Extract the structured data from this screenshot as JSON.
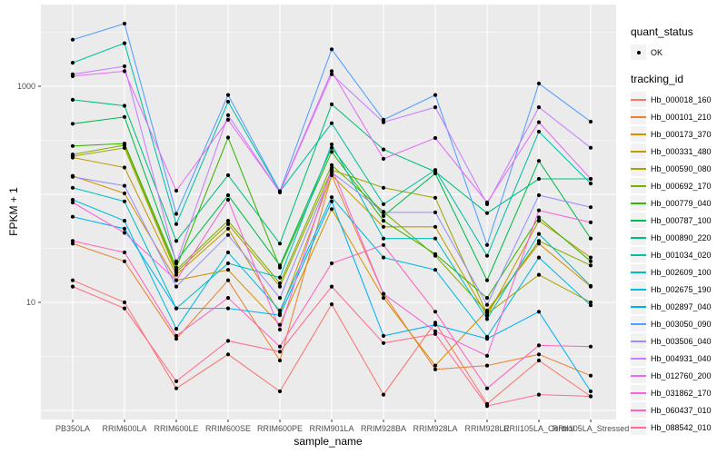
{
  "legend": {
    "quant_status": {
      "title": "quant_status",
      "items": [
        {
          "label": "OK",
          "marker": "point",
          "color": "#000000"
        }
      ]
    },
    "tracking_id": {
      "title": "tracking_id"
    }
  },
  "style": {
    "panel_bg": "#EBEBEB",
    "grid_color": "#FFFFFF",
    "tick_text_color": "#4D4D4D",
    "axis_tick_color": "#333333",
    "point_color": "#000000",
    "legend_key_bg": "#F2F2F2"
  },
  "chart_data": {
    "type": "line",
    "title": "",
    "xlabel": "sample_name",
    "ylabel": "FPKM + 1",
    "y_scale": "log10",
    "y_ticks": [
      10,
      1000
    ],
    "y_tick_labels": [
      "10",
      "1000"
    ],
    "ylim": [
      1.8,
      5700
    ],
    "grid": true,
    "legend_position": "right",
    "point_legend": "quant_status OK = black point on every sample",
    "categories": [
      "PB350LA",
      "RRIM600LA",
      "RRIM600LE",
      "RRIM600SE",
      "RRIM600PE",
      "RRIM901LA",
      "RRIM928BA",
      "RRIM928LA",
      "RRIM928LE",
      "RRII105LA_Control",
      "RRII105LA_Stressed"
    ],
    "series": [
      {
        "name": "Hb_000018_160",
        "color": "#F8766D",
        "values": [
          16,
          10,
          1.6,
          3.3,
          1.5,
          9.6,
          1.4,
          6.5,
          1.15,
          2.9,
          1.35
        ]
      },
      {
        "name": "Hb_000101_210",
        "color": "#EA8335",
        "values": [
          35,
          24,
          4.6,
          16,
          2.9,
          150,
          12,
          2.4,
          2.6,
          3.3,
          2.1
        ]
      },
      {
        "name": "Hb_000173_370",
        "color": "#D89000",
        "values": [
          148,
          102,
          16,
          20,
          6.2,
          73,
          11,
          2.6,
          8.4,
          35,
          14
        ]
      },
      {
        "name": "Hb_000331_480",
        "color": "#C09B06",
        "values": [
          219,
          177,
          18,
          48,
          7.9,
          150,
          50,
          50,
          7.5,
          57,
          26
        ]
      },
      {
        "name": "Hb_000590_080",
        "color": "#A3A500",
        "values": [
          225,
          269,
          19,
          53,
          14,
          168,
          115,
          93,
          7.8,
          18,
          10
        ]
      },
      {
        "name": "Hb_000692_170",
        "color": "#7CAE00",
        "values": [
          234,
          285,
          20,
          57,
          15,
          186,
          69,
          27,
          8.1,
          37,
          22
        ]
      },
      {
        "name": "Hb_000779_040",
        "color": "#39B600",
        "values": [
          280,
          295,
          21,
          335,
          21,
          247,
          57,
          28,
          11,
          61,
          24
        ]
      },
      {
        "name": "Hb_000787_100",
        "color": "#00BB4E",
        "values": [
          450,
          520,
          24,
          98,
          22,
          270,
          63,
          156,
          16,
          204,
          39
        ]
      },
      {
        "name": "Hb_000890_220",
        "color": "#00BF7D",
        "values": [
          750,
          660,
          37,
          150,
          35,
          680,
          260,
          162,
          67,
          139,
          139
        ]
      },
      {
        "name": "Hb_001034_020",
        "color": "#00C1A3",
        "values": [
          1650,
          2500,
          53,
          720,
          106,
          455,
          81,
          168,
          27,
          380,
          126
        ]
      },
      {
        "name": "Hb_002609_100",
        "color": "#00BFC4",
        "values": [
          115,
          86,
          8.8,
          23,
          17,
          290,
          39,
          39,
          7,
          43,
          14.2
        ]
      },
      {
        "name": "Hb_002675_190",
        "color": "#00BAE0",
        "values": [
          89,
          57,
          5.7,
          29,
          8.4,
          94,
          26,
          20,
          4.8,
          26,
          9.4
        ]
      },
      {
        "name": "Hb_002897_040",
        "color": "#00B0F6",
        "values": [
          62,
          48,
          8.8,
          8.8,
          7.6,
          86,
          4.9,
          6.2,
          4.6,
          8.2,
          1.5
        ]
      },
      {
        "name": "Hb_003050_090",
        "color": "#529EFF",
        "values": [
          2700,
          3800,
          66,
          830,
          107,
          2200,
          490,
          830,
          34,
          1060,
          470
        ]
      },
      {
        "name": "Hb_003506_040",
        "color": "#9590FF",
        "values": [
          145,
          120,
          14,
          42,
          11,
          160,
          68,
          68,
          9.5,
          98,
          76
        ]
      },
      {
        "name": "Hb_004931_040",
        "color": "#C77CFF",
        "values": [
          1290,
          1530,
          23,
          540,
          104,
          1290,
          465,
          640,
          81,
          640,
          270
        ]
      },
      {
        "name": "Hb_012760_200",
        "color": "#E76BF3",
        "values": [
          1240,
          1380,
          108,
          490,
          105,
          1380,
          213,
          332,
          84,
          465,
          139
        ]
      },
      {
        "name": "Hb_031862_170",
        "color": "#FA62DB",
        "values": [
          84,
          44,
          16,
          89,
          5.6,
          175,
          12,
          5.4,
          3.2,
          71,
          55
        ]
      },
      {
        "name": "Hb_060437_010",
        "color": "#FF62BC",
        "values": [
          37,
          29,
          4.9,
          11,
          3.9,
          23,
          34,
          8.2,
          1.6,
          4.0,
          3.9
        ]
      },
      {
        "name": "Hb_088542_010",
        "color": "#FF6C90",
        "values": [
          14,
          8.8,
          1.86,
          4.4,
          3.5,
          14,
          4.2,
          5.1,
          1.1,
          1.4,
          1.35
        ]
      }
    ]
  }
}
